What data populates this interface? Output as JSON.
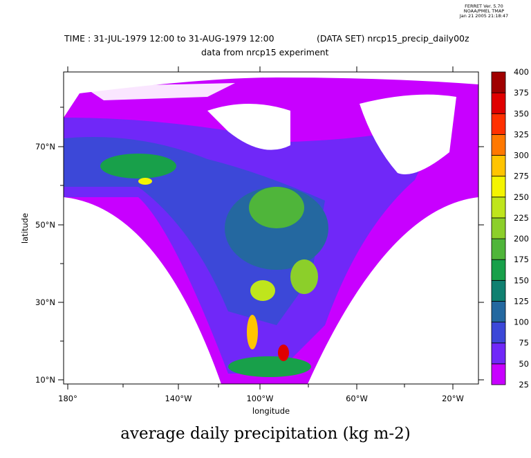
{
  "stamp": {
    "line1": "FERRET Ver. 5.70",
    "line2": "NOAA/PMEL TMAP",
    "line3": "Jan 21 2005 21:18:47"
  },
  "header": {
    "time": "TIME : 31-JUL-1979 12:00 to 31-AUG-1979 12:00",
    "dataset": "(DATA SET) nrcp15_precip_daily00z",
    "subtitle": "data from nrcp15 experiment"
  },
  "title": "average daily precipitation (kg m-2)",
  "chart_data": {
    "type": "heatmap",
    "title": "average daily precipitation (kg m-2)",
    "xlabel": "longitude",
    "ylabel": "latitude",
    "x_ticks": [
      "180°",
      "140°W",
      "100°W",
      "60°W",
      "20°W"
    ],
    "y_ticks": [
      "70°N",
      "50°N",
      "30°N",
      "10°N"
    ],
    "colorbar": {
      "levels": [
        25,
        50,
        75,
        100,
        125,
        150,
        175,
        200,
        225,
        250,
        275,
        300,
        325,
        350,
        375,
        400
      ],
      "labels": [
        "25",
        "50",
        "75",
        "100",
        "125",
        "150",
        "175",
        "200",
        "225",
        "250",
        "275",
        "300",
        "325",
        "350",
        "375",
        "400"
      ],
      "colors": [
        "#c800ff",
        "#7028f8",
        "#3c48d8",
        "#2468a0",
        "#108070",
        "#18a04a",
        "#4fb53a",
        "#8ccf2a",
        "#bfe51c",
        "#f4f400",
        "#ffc400",
        "#ff7800",
        "#ff3000",
        "#e00000",
        "#a00000"
      ]
    }
  }
}
